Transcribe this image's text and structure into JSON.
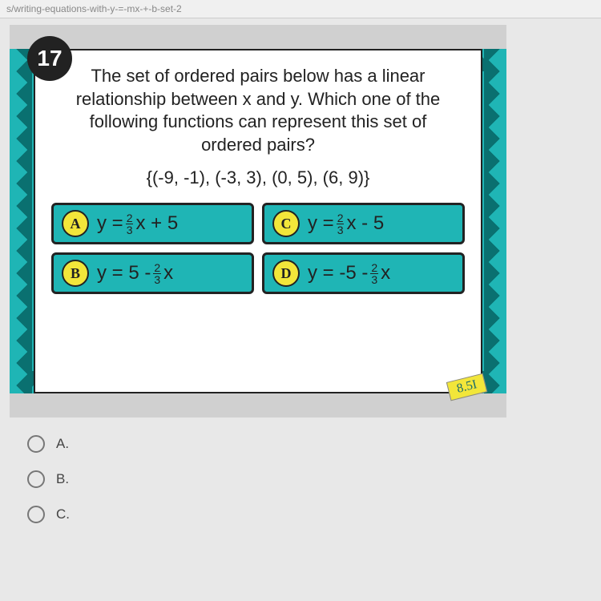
{
  "url_bar": "s/writing-equations-with-y-=-mx-+-b-set-2",
  "card": {
    "border_color": "#1fb5b5",
    "zigzag_dark": "#0a7070",
    "inner_bg": "#ffffff",
    "question_number": "17",
    "badge_bg": "#222222",
    "badge_text_color": "#ffffff",
    "question_text": "The set of ordered pairs below has a linear relationship between x and y. Which one of the following functions can represent this set of ordered pairs?",
    "ordered_pairs": "{(-9, -1), (-3, 3), (0, 5), (6, 9)}",
    "question_font": "Comic Sans MS",
    "question_fontsize": 22,
    "answers_bg": "#1fb5b5",
    "answers_border": "#222222",
    "letter_bg": "#f2e63a",
    "answers": [
      {
        "letter": "A",
        "prefix": "y = ",
        "frac_n": "2",
        "frac_d": "3",
        "suffix": "x + 5"
      },
      {
        "letter": "C",
        "prefix": "y = ",
        "frac_n": "2",
        "frac_d": "3",
        "suffix": "x - 5"
      },
      {
        "letter": "B",
        "prefix": "y = 5 - ",
        "frac_n": "2",
        "frac_d": "3",
        "suffix": "x"
      },
      {
        "letter": "D",
        "prefix": "y = -5 - ",
        "frac_n": "2",
        "frac_d": "3",
        "suffix": "x"
      }
    ],
    "standard_badge": "8.5I"
  },
  "options": [
    {
      "label": "A."
    },
    {
      "label": "B."
    },
    {
      "label": "C."
    }
  ]
}
